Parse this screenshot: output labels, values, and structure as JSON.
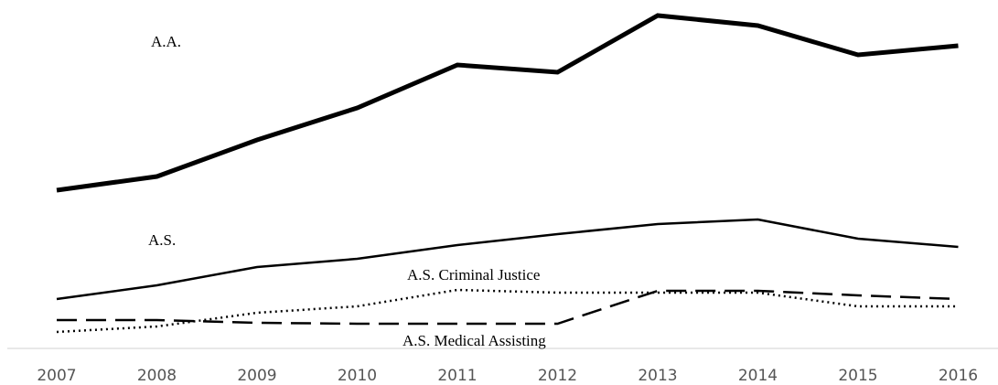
{
  "chart_data": {
    "type": "line",
    "categories": [
      "2007",
      "2008",
      "2009",
      "2010",
      "2011",
      "2012",
      "2013",
      "2014",
      "2015",
      "2016"
    ],
    "ylim": [
      0,
      370
    ],
    "series": [
      {
        "name": "A.A.",
        "color": "#000000",
        "line_style": "solid",
        "values": [
          173,
          188,
          228,
          263,
          310,
          302,
          364,
          353,
          321,
          331
        ]
      },
      {
        "name": "A.S.",
        "color": "#000000",
        "line_style": "solid",
        "values": [
          54,
          69,
          89,
          98,
          113,
          125,
          136,
          141,
          120,
          111
        ]
      },
      {
        "name": "A.S. Criminal Justice",
        "color": "#000000",
        "line_style": "dotted",
        "values": [
          18,
          24,
          39,
          46,
          64,
          61,
          61,
          61,
          46,
          46
        ]
      },
      {
        "name": "A.S. Medical Assisting",
        "color": "#000000",
        "line_style": "dashed",
        "values": [
          31,
          31,
          28,
          27,
          27,
          27,
          63,
          63,
          58,
          54
        ]
      }
    ]
  }
}
